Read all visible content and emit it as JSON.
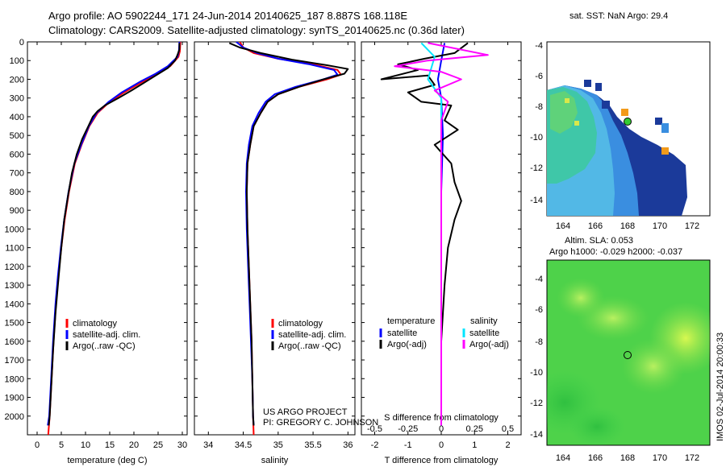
{
  "header": {
    "line1": "Argo profile: AO 5902244_171 24-Jun-2014 20140625_187 8.887S 168.118E",
    "line2": "Climatology: CARS2009. Satellite-adjusted climatology: synTS_20140625.nc (0.36d later)"
  },
  "credits": {
    "project": "US ARGO PROJECT",
    "pi": "PI: GREGORY C. JOHNSON"
  },
  "stamp": "IMOS 02-Jul-2014 20:00:33",
  "colors": {
    "clim": "#ff0000",
    "sat": "#0000ff",
    "argo": "#000000",
    "sat_s": "#00e5ff",
    "argo_s": "#ff00ff"
  },
  "legend": {
    "clim": "climatology",
    "sat": "satellite-adj. clim.",
    "argo": "Argo(..raw -QC)",
    "t_head": "temperature",
    "s_head": "salinity",
    "t_sat": "satellite",
    "t_argo": "Argo(-adj)",
    "s_sat": "satellite",
    "s_argo": "Argo(-adj)"
  },
  "maps": {
    "sst": {
      "title": "sat. SST: NaN Argo: 29.4",
      "xticks": [
        "164",
        "166",
        "168",
        "170",
        "172"
      ],
      "yticks": [
        "-4",
        "-6",
        "-8",
        "-10",
        "-12",
        "-14"
      ]
    },
    "sla": {
      "title1": "Altim. SLA: 0.053",
      "title2": "Argo h1000: -0.029 h2000: -0.037",
      "xticks": [
        "164",
        "166",
        "168",
        "170",
        "172"
      ],
      "yticks": [
        "-4",
        "-6",
        "-8",
        "-10",
        "-12",
        "-14"
      ]
    }
  },
  "chart_data": [
    {
      "type": "line",
      "xlabel": "temperature (deg C)",
      "ylabel": "",
      "xlim": [
        -2,
        31
      ],
      "ylim": [
        2100,
        0
      ],
      "xticks": [
        0,
        5,
        10,
        15,
        20,
        25,
        30
      ],
      "yticks": [
        0,
        100,
        200,
        300,
        400,
        500,
        600,
        700,
        800,
        900,
        1000,
        1100,
        1200,
        1300,
        1400,
        1500,
        1600,
        1700,
        1800,
        1900,
        2000
      ],
      "series": [
        {
          "name": "climatology",
          "color": "#ff0000",
          "points": [
            [
              29.6,
              0
            ],
            [
              29.5,
              50
            ],
            [
              29.2,
              80
            ],
            [
              27.5,
              130
            ],
            [
              25,
              170
            ],
            [
              22,
              210
            ],
            [
              18,
              270
            ],
            [
              15,
              320
            ],
            [
              12.5,
              380
            ],
            [
              10.8,
              450
            ],
            [
              9.2,
              550
            ],
            [
              7.8,
              650
            ],
            [
              6.6,
              800
            ],
            [
              5.7,
              950
            ],
            [
              5,
              1100
            ],
            [
              4.4,
              1250
            ],
            [
              3.9,
              1400
            ],
            [
              3.4,
              1600
            ],
            [
              3,
              1800
            ],
            [
              2.6,
              2000
            ],
            [
              2.3,
              2100
            ]
          ]
        },
        {
          "name": "satellite-adj. clim.",
          "color": "#0000ff",
          "points": [
            [
              29.4,
              0
            ],
            [
              29.3,
              50
            ],
            [
              29.0,
              80
            ],
            [
              27.0,
              130
            ],
            [
              24.5,
              170
            ],
            [
              21.5,
              210
            ],
            [
              17.5,
              270
            ],
            [
              14.8,
              320
            ],
            [
              12.3,
              380
            ],
            [
              10.7,
              450
            ],
            [
              9.1,
              550
            ],
            [
              7.7,
              650
            ],
            [
              6.5,
              800
            ],
            [
              5.6,
              950
            ],
            [
              4.9,
              1100
            ],
            [
              4.3,
              1250
            ],
            [
              3.8,
              1400
            ],
            [
              3.3,
              1600
            ],
            [
              2.9,
              1800
            ],
            [
              2.5,
              2000
            ],
            [
              2.2,
              2050
            ]
          ]
        },
        {
          "name": "Argo(..raw -QC)",
          "color": "#000000",
          "points": [
            [
              29.4,
              6
            ],
            [
              29.4,
              40
            ],
            [
              29.0,
              70
            ],
            [
              28.5,
              100
            ],
            [
              27,
              140
            ],
            [
              24.5,
              180
            ],
            [
              22,
              220
            ],
            [
              19.5,
              260
            ],
            [
              16.8,
              300
            ],
            [
              14,
              340
            ],
            [
              12.5,
              370
            ],
            [
              11.5,
              400
            ],
            [
              10.6,
              450
            ],
            [
              9.3,
              520
            ],
            [
              8.2,
              600
            ],
            [
              7.2,
              700
            ],
            [
              6.4,
              820
            ],
            [
              5.6,
              950
            ],
            [
              5.0,
              1100
            ],
            [
              4.3,
              1300
            ],
            [
              3.8,
              1450
            ],
            [
              3.3,
              1650
            ],
            [
              2.9,
              1850
            ],
            [
              2.6,
              2000
            ],
            [
              2.4,
              2050
            ]
          ]
        }
      ]
    },
    {
      "type": "line",
      "xlabel": "salinity",
      "ylabel": "",
      "xlim": [
        33.8,
        36.1
      ],
      "ylim": [
        2100,
        0
      ],
      "xticks": [
        34,
        34.5,
        35,
        35.5,
        36
      ],
      "series": [
        {
          "name": "climatology",
          "color": "#ff0000",
          "points": [
            [
              34.45,
              0
            ],
            [
              34.5,
              30
            ],
            [
              34.65,
              60
            ],
            [
              35.0,
              90
            ],
            [
              35.5,
              120
            ],
            [
              35.85,
              150
            ],
            [
              35.9,
              175
            ],
            [
              35.7,
              200
            ],
            [
              35.3,
              240
            ],
            [
              35.0,
              280
            ],
            [
              34.85,
              320
            ],
            [
              34.75,
              380
            ],
            [
              34.65,
              450
            ],
            [
              34.6,
              550
            ],
            [
              34.56,
              650
            ],
            [
              34.55,
              800
            ],
            [
              34.56,
              1000
            ],
            [
              34.58,
              1200
            ],
            [
              34.6,
              1400
            ],
            [
              34.62,
              1600
            ],
            [
              34.63,
              1800
            ],
            [
              34.64,
              2000
            ],
            [
              34.65,
              2100
            ]
          ]
        },
        {
          "name": "satellite-adj. clim.",
          "color": "#0000ff",
          "points": [
            [
              34.4,
              0
            ],
            [
              34.5,
              30
            ],
            [
              34.7,
              60
            ],
            [
              35.0,
              90
            ],
            [
              35.45,
              120
            ],
            [
              35.8,
              150
            ],
            [
              35.85,
              175
            ],
            [
              35.65,
              200
            ],
            [
              35.25,
              240
            ],
            [
              34.95,
              280
            ],
            [
              34.82,
              320
            ],
            [
              34.72,
              380
            ],
            [
              34.63,
              450
            ],
            [
              34.58,
              550
            ],
            [
              34.55,
              650
            ],
            [
              34.54,
              800
            ],
            [
              34.55,
              1000
            ],
            [
              34.57,
              1200
            ],
            [
              34.59,
              1400
            ],
            [
              34.61,
              1600
            ],
            [
              34.63,
              1800
            ],
            [
              34.64,
              2000
            ],
            [
              34.65,
              2050
            ]
          ]
        },
        {
          "name": "Argo(..raw -QC)",
          "color": "#000000",
          "points": [
            [
              34.3,
              6
            ],
            [
              34.45,
              30
            ],
            [
              34.75,
              60
            ],
            [
              35.2,
              95
            ],
            [
              35.7,
              125
            ],
            [
              36.0,
              145
            ],
            [
              35.95,
              170
            ],
            [
              35.65,
              200
            ],
            [
              35.3,
              240
            ],
            [
              35.0,
              280
            ],
            [
              34.85,
              320
            ],
            [
              34.75,
              380
            ],
            [
              34.65,
              450
            ],
            [
              34.6,
              550
            ],
            [
              34.56,
              650
            ],
            [
              34.55,
              800
            ],
            [
              34.56,
              1000
            ],
            [
              34.58,
              1200
            ],
            [
              34.6,
              1400
            ],
            [
              34.62,
              1600
            ],
            [
              34.63,
              1800
            ],
            [
              34.64,
              2000
            ],
            [
              34.65,
              2050
            ]
          ]
        }
      ]
    },
    {
      "type": "line",
      "xlabel": "T difference from climatology",
      "xlabel_top": "S difference from climatology",
      "ylabel": "",
      "xlim": [
        -2.4,
        2.4
      ],
      "xlim_top": [
        -0.6,
        0.6
      ],
      "ylim": [
        2100,
        0
      ],
      "xticks": [
        -2,
        -1,
        0,
        1,
        2
      ],
      "xticks_top": [
        "-0.5",
        "-0.25",
        "0",
        "0.25",
        "0.5"
      ],
      "series": [
        {
          "name": "temperature satellite",
          "color": "#0000ff",
          "points": [
            [
              0.1,
              6
            ],
            [
              0.0,
              100
            ],
            [
              -0.1,
              200
            ],
            [
              0.0,
              300
            ],
            [
              0.05,
              500
            ],
            [
              0.0,
              800
            ],
            [
              0.0,
              1200
            ],
            [
              0.0,
              1600
            ],
            [
              0.0,
              2050
            ]
          ]
        },
        {
          "name": "temperature Argo(-adj)",
          "color": "#000000",
          "points": [
            [
              0.8,
              6
            ],
            [
              0.4,
              60
            ],
            [
              -0.5,
              90
            ],
            [
              -1.3,
              120
            ],
            [
              -0.7,
              150
            ],
            [
              -1.8,
              200
            ],
            [
              -0.4,
              180
            ],
            [
              -0.2,
              230
            ],
            [
              -1.0,
              270
            ],
            [
              -0.6,
              320
            ],
            [
              0.3,
              340
            ],
            [
              0.1,
              420
            ],
            [
              0.5,
              470
            ],
            [
              -0.2,
              550
            ],
            [
              0.3,
              650
            ],
            [
              0.4,
              750
            ],
            [
              0.6,
              850
            ],
            [
              0.4,
              950
            ],
            [
              0.2,
              1100
            ],
            [
              0.1,
              1300
            ],
            [
              0.0,
              1600
            ],
            [
              0.0,
              2050
            ]
          ]
        },
        {
          "name": "salinity satellite",
          "color": "#00e5ff",
          "points": [
            [
              -0.15,
              6
            ],
            [
              -0.05,
              80
            ],
            [
              -0.1,
              200
            ],
            [
              0.0,
              300
            ],
            [
              0.0,
              800
            ],
            [
              0.0,
              1500
            ],
            [
              0.0,
              2050
            ]
          ]
        },
        {
          "name": "salinity Argo(-adj)",
          "color": "#ff00ff",
          "points": [
            [
              -0.1,
              6
            ],
            [
              0.35,
              70
            ],
            [
              -0.1,
              100
            ],
            [
              -0.35,
              130
            ],
            [
              0.0,
              160
            ],
            [
              0.15,
              200
            ],
            [
              -0.05,
              260
            ],
            [
              0.05,
              320
            ],
            [
              0.0,
              420
            ],
            [
              0.0,
              2050
            ]
          ]
        }
      ]
    }
  ]
}
